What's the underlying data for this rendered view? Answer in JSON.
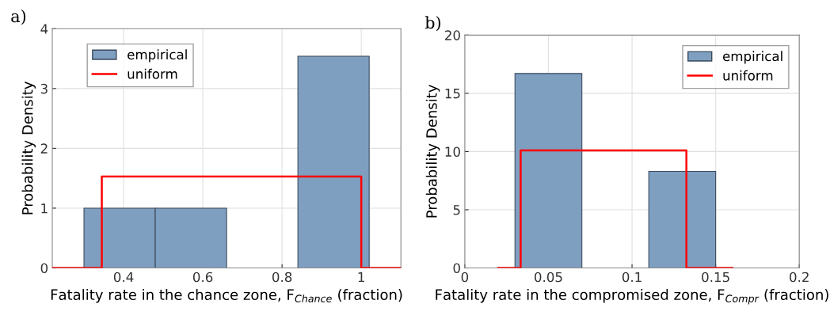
{
  "chart_data": [
    {
      "type": "histogram",
      "title": "a)",
      "xlabel": "Fatality rate in the chance zone, F$_{Chance}$ (fraction)",
      "ylabel": "Probability Density",
      "series": [
        {
          "name": "empirical",
          "type": "histogram",
          "color": "#7f9fc1",
          "bins": [
            0.3,
            0.48,
            0.66,
            0.84,
            1.02
          ],
          "values": [
            1,
            1,
            0,
            3.54
          ]
        },
        {
          "name": "uniform",
          "type": "line",
          "color": "#ff0000",
          "x": [
            0.22,
            0.345,
            0.345,
            1.0,
            1.0,
            1.1
          ],
          "values": [
            0,
            0,
            1.53,
            1.53,
            0,
            0
          ]
        }
      ],
      "xlim": [
        0.22,
        1.1
      ],
      "xticks": [
        0.4,
        0.6,
        0.8,
        1
      ],
      "ylim": [
        0,
        4
      ],
      "yticks": [
        0,
        1,
        2,
        3,
        4
      ],
      "grid": true,
      "legend": "top left"
    },
    {
      "type": "histogram",
      "title": "b)",
      "xlabel": "Fatality rate in the compromised zone, F$_{Compr}$ (fraction)",
      "ylabel": "Probability Density",
      "series": [
        {
          "name": "empirical",
          "type": "histogram",
          "color": "#7f9fc1",
          "bins": [
            0.03,
            0.07,
            0.11,
            0.15
          ],
          "values": [
            16.7,
            0,
            8.3
          ]
        },
        {
          "name": "uniform",
          "type": "line",
          "color": "#ff0000",
          "x": [
            0.02,
            0.0334,
            0.0334,
            0.1325,
            0.1325,
            0.16
          ],
          "values": [
            0,
            0,
            10.1,
            10.1,
            0,
            0
          ]
        }
      ],
      "xlim": [
        0,
        0.2
      ],
      "xticks": [
        0,
        0.05,
        0.1,
        0.15,
        0.2
      ],
      "ylim": [
        0,
        20
      ],
      "yticks": [
        0,
        5,
        10,
        15,
        20
      ],
      "grid": true,
      "legend": "top right"
    }
  ]
}
